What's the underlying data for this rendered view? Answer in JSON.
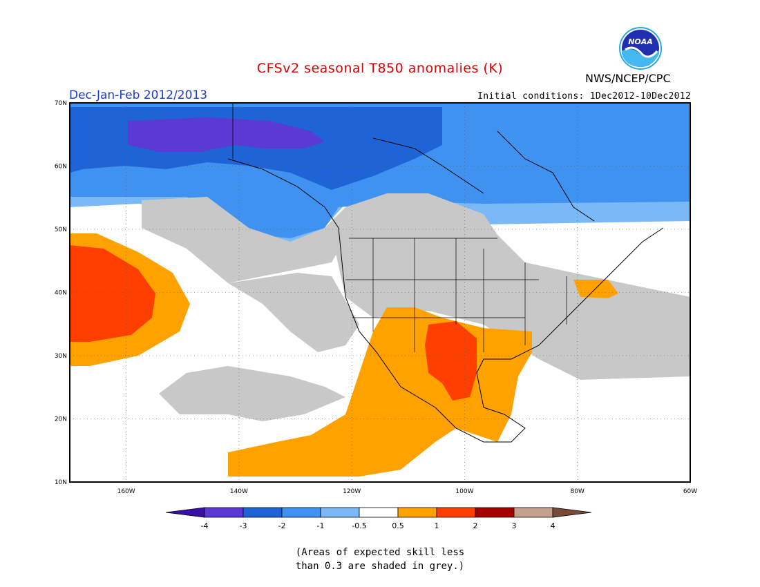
{
  "header": {
    "title": "CFSv2 seasonal T850 anomalies (K)",
    "agency": "NWS/NCEP/CPC",
    "season": "Dec-Jan-Feb 2012/2013",
    "initial_conditions": "Initial conditions: 1Dec2012-10Dec2012"
  },
  "map": {
    "lat_labels": [
      "70N",
      "60N",
      "50N",
      "40N",
      "30N",
      "20N",
      "10N"
    ],
    "lon_labels": [
      "160W",
      "140W",
      "120W",
      "100W",
      "80W",
      "60W"
    ],
    "lat_range": [
      10,
      70
    ],
    "lon_range": [
      -170,
      -60
    ]
  },
  "legend": {
    "colors": [
      "#3a0fa8",
      "#5a3ad2",
      "#1f64d6",
      "#3f92ef",
      "#7ab8f7",
      "#ffffff",
      "#ffa200",
      "#ff3f00",
      "#a50000",
      "#c6a08f",
      "#7a4a38"
    ],
    "labels": [
      "-4",
      "-3",
      "-2",
      "-1",
      "-0.5",
      "0.5",
      "1",
      "2",
      "3",
      "4"
    ],
    "grey_color": "#c8c8c8"
  },
  "footnote": {
    "line1": "(Areas of expected skill less",
    "line2": "than 0.3 are shaded in grey.)"
  },
  "colors": {
    "title": "#e00000",
    "season": "#1a3ccc"
  }
}
